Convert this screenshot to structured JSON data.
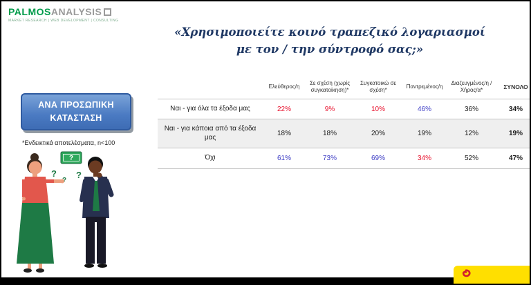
{
  "logo": {
    "name_green": "PALMOS",
    "name_gray": "ANALYSIS",
    "tagline": "MARKET RESEARCH | WEB DEVELOPMENT | CONSULTING"
  },
  "title": {
    "line1": "«Χρησιμοποιείτε κοινό τραπεζικό λογαριασμοί",
    "line2": "με τον / την σύντροφό σας;»"
  },
  "category_box": {
    "line1": "ΑΝΑ ΠΡΟΣΩΠΙΚΗ",
    "line2": "ΚΑΤΑΣΤΑΣΗ"
  },
  "footnote": "*Ενδεικτικά αποτελέσματα, n<100",
  "illustration": {
    "question_mark": "?",
    "banknote_symbol": "?"
  },
  "value_colors": {
    "red": "#e8112d",
    "blue": "#3b3bc4",
    "black": "#1a1a1a"
  },
  "chart_data": {
    "type": "table",
    "title": "«Χρησιμοποιείτε κοινό τραπεζικό λογαριασμοί με τον / την σύντροφό σας;»",
    "columns": [
      "Ελεύθερος/η",
      "Σε σχέση (χωρίς συγκατοίκηση)*",
      "Συγκατοικώ σε σχέση*",
      "Παντρεμένος/η",
      "Διαζευγμένος/η / Χήρος/α*",
      "ΣΥΝΟΛΟ"
    ],
    "rows": [
      {
        "label": "Ναι - για όλα τα έξοδα μας",
        "values": [
          "22%",
          "9%",
          "10%",
          "46%",
          "36%",
          "34%"
        ],
        "colors": [
          "red",
          "red",
          "red",
          "blue",
          "black",
          "black"
        ]
      },
      {
        "label": "Ναι - για κάποια από τα έξοδα μας",
        "values": [
          "18%",
          "18%",
          "20%",
          "19%",
          "12%",
          "19%"
        ],
        "colors": [
          "black",
          "black",
          "black",
          "black",
          "black",
          "black"
        ]
      },
      {
        "label": "Όχι",
        "values": [
          "61%",
          "73%",
          "69%",
          "34%",
          "52%",
          "47%"
        ],
        "colors": [
          "blue",
          "blue",
          "blue",
          "red",
          "black",
          "black"
        ]
      }
    ]
  },
  "icons": {
    "partner_mark": "red-swirl-icon",
    "logo_square": "gray-square-outline-icon"
  }
}
